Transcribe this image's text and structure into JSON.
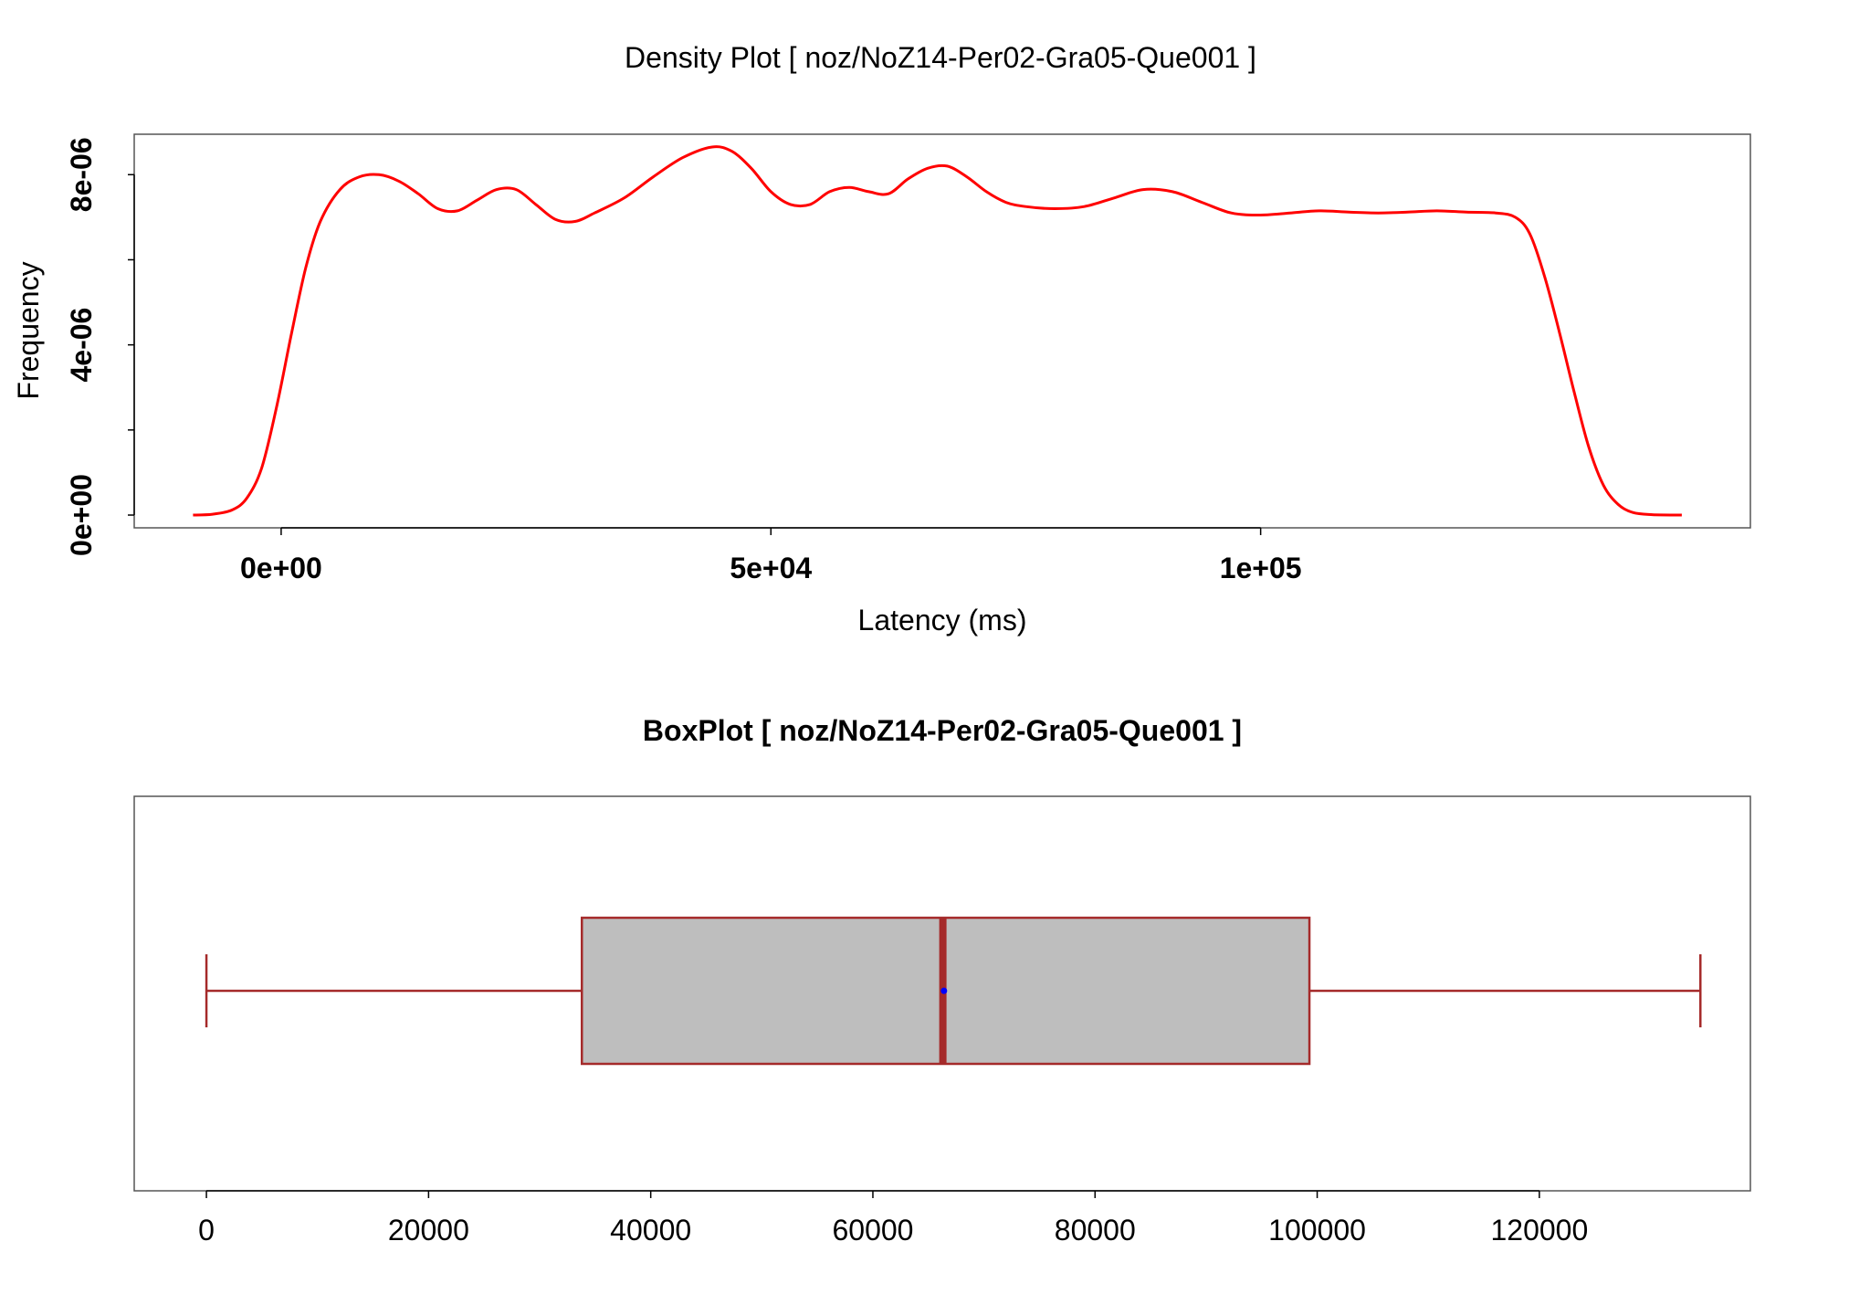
{
  "chart_data": [
    {
      "type": "line",
      "title": "Density Plot [ noz/NoZ14-Per02-Gra05-Que001 ]",
      "xlabel": "Latency (ms)",
      "ylabel": "Frequency",
      "xlim": [
        -15000,
        150000
      ],
      "ylim": [
        -3e-07,
        8.95e-06
      ],
      "x_ticks": [
        0,
        50000,
        100000
      ],
      "x_tick_labels": [
        "0e+00",
        "5e+04",
        "1e+05"
      ],
      "y_ticks": [
        0,
        2e-06,
        4e-06,
        6e-06,
        8e-06
      ],
      "y_tick_labels": [
        "0e+00",
        "",
        "4e-06",
        "",
        "8e-06"
      ],
      "grid": false,
      "series": [
        {
          "color": "#ff0000",
          "x": [
            -9000,
            -7000,
            -5000,
            -3500,
            -2000,
            -500,
            1000,
            2500,
            4000,
            6000,
            8000,
            10000,
            12000,
            14000,
            16000,
            18000,
            20000,
            22000,
            24000,
            26000,
            28000,
            30000,
            32000,
            35000,
            38000,
            41000,
            44000,
            46000,
            48000,
            50000,
            52000,
            54000,
            56000,
            58000,
            60000,
            62000,
            64000,
            66000,
            68000,
            70000,
            72000,
            74000,
            76000,
            79000,
            82000,
            85000,
            88000,
            91000,
            94000,
            97000,
            100000,
            103000,
            106000,
            109000,
            112000,
            115000,
            118000,
            121000,
            124000,
            126000,
            127500,
            129000,
            130500,
            132000,
            133500,
            135000,
            136500,
            138000,
            140000,
            143000
          ],
          "y": [
            0.0,
            2e-08,
            1.2e-07,
            4e-07,
            1.1e-06,
            2.5e-06,
            4.2e-06,
            5.8e-06,
            6.9e-06,
            7.65e-06,
            7.95e-06,
            8e-06,
            7.85e-06,
            7.55e-06,
            7.2e-06,
            7.15e-06,
            7.4e-06,
            7.65e-06,
            7.65e-06,
            7.3e-06,
            6.95e-06,
            6.9e-06,
            7.1e-06,
            7.45e-06,
            7.95e-06,
            8.4e-06,
            8.65e-06,
            8.55e-06,
            8.15e-06,
            7.6e-06,
            7.3e-06,
            7.3e-06,
            7.6e-06,
            7.7e-06,
            7.6e-06,
            7.55e-06,
            7.9e-06,
            8.15e-06,
            8.2e-06,
            7.95e-06,
            7.6e-06,
            7.35e-06,
            7.25e-06,
            7.2e-06,
            7.25e-06,
            7.45e-06,
            7.65e-06,
            7.6e-06,
            7.35e-06,
            7.1e-06,
            7.05e-06,
            7.1e-06,
            7.15e-06,
            7.12e-06,
            7.1e-06,
            7.12e-06,
            7.15e-06,
            7.12e-06,
            7.1e-06,
            7e-06,
            6.6e-06,
            5.6e-06,
            4.3e-06,
            2.9e-06,
            1.6e-06,
            7e-07,
            2.5e-07,
            6e-08,
            1e-08,
            0.0
          ]
        }
      ]
    },
    {
      "type": "boxplot",
      "title": "BoxPlot [ noz/NoZ14-Per02-Gra05-Que001 ]",
      "xlim": [
        -6500,
        139000
      ],
      "x_ticks": [
        0,
        20000,
        40000,
        60000,
        80000,
        100000,
        120000
      ],
      "x_tick_labels": [
        "0",
        "20000",
        "40000",
        "60000",
        "80000",
        "100000",
        "120000"
      ],
      "box": {
        "min": 0,
        "q1": 33800,
        "median": 66300,
        "mean": 66400,
        "q3": 99300,
        "max": 134500
      },
      "colors": {
        "box_fill": "#bebebe",
        "box_stroke": "#a52a2a",
        "mean_point": "#0000ff"
      }
    }
  ]
}
